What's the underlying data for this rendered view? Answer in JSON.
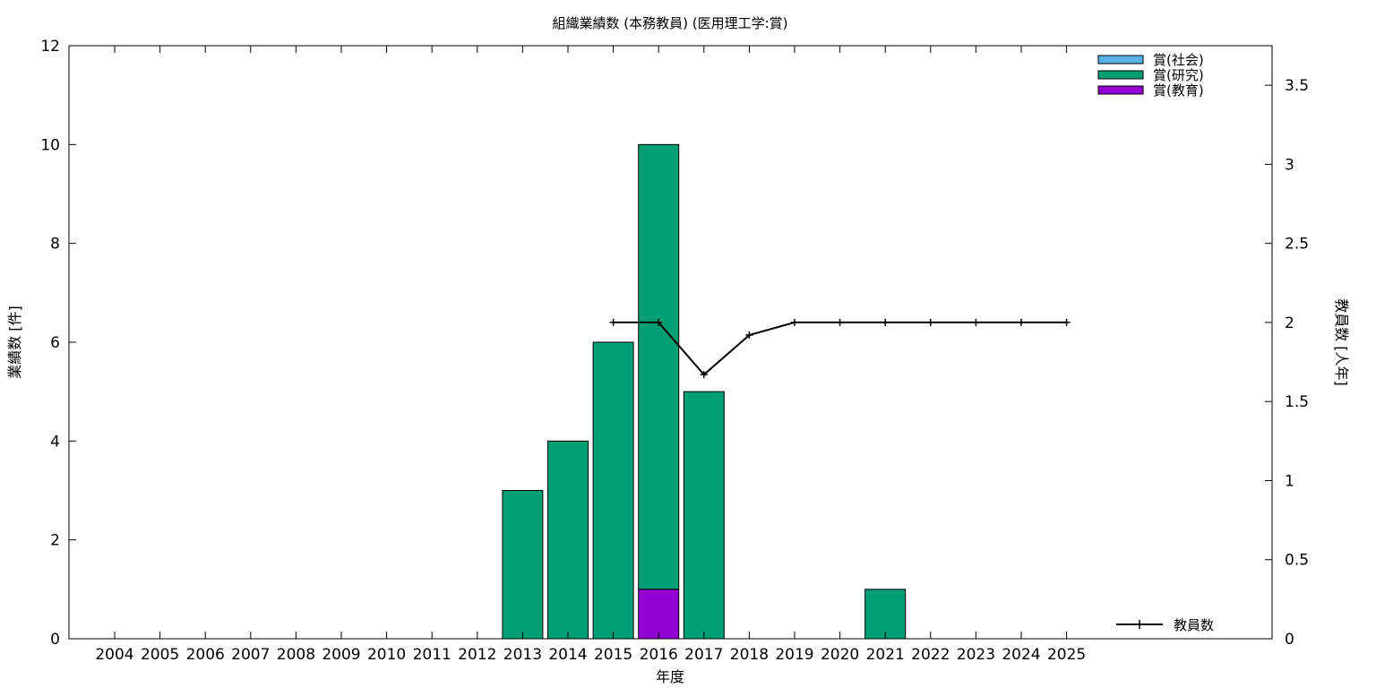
{
  "chart_data": {
    "type": "bar",
    "title": "組織業績数 (本務教員) (医用理工学:賞)",
    "xlabel": "年度",
    "ylabel": "業績数 [件]",
    "y2label": "教員数 [人年]",
    "categories": [
      "2004",
      "2005",
      "2006",
      "2007",
      "2008",
      "2009",
      "2010",
      "2011",
      "2012",
      "2013",
      "2014",
      "2015",
      "2016",
      "2017",
      "2018",
      "2019",
      "2020",
      "2021",
      "2022",
      "2023",
      "2024",
      "2025"
    ],
    "ylim": [
      0,
      12
    ],
    "y2lim": [
      0,
      3.75
    ],
    "yticks": [
      "0",
      "2",
      "4",
      "6",
      "8",
      "10",
      "12"
    ],
    "y2ticks": [
      "0",
      "0.5",
      "1",
      "1.5",
      "2",
      "2.5",
      "3",
      "3.5"
    ],
    "stacked": true,
    "series": [
      {
        "name": "賞(教育)",
        "color": "#9400d3",
        "values": [
          0,
          0,
          0,
          0,
          0,
          0,
          0,
          0,
          0,
          0,
          0,
          0,
          1,
          0,
          0,
          0,
          0,
          0,
          0,
          0,
          0,
          0
        ]
      },
      {
        "name": "賞(研究)",
        "color": "#009e73",
        "values": [
          0,
          0,
          0,
          0,
          0,
          0,
          0,
          0,
          0,
          3,
          4,
          6,
          9,
          5,
          0,
          0,
          0,
          1,
          0,
          0,
          0,
          0
        ]
      },
      {
        "name": "賞(社会)",
        "color": "#56b4e9",
        "values": [
          0,
          0,
          0,
          0,
          0,
          0,
          0,
          0,
          0,
          0,
          0,
          0,
          0,
          0,
          0,
          0,
          0,
          0,
          0,
          0,
          0,
          0
        ]
      }
    ],
    "line_series": {
      "name": "教員数",
      "color": "#000000",
      "axis": "right",
      "x": [
        "2015",
        "2016",
        "2017",
        "2018",
        "2019",
        "2020",
        "2021",
        "2022",
        "2023",
        "2024",
        "2025"
      ],
      "values": [
        2,
        2,
        1.67,
        1.92,
        2,
        2,
        2,
        2,
        2,
        2,
        2
      ]
    },
    "legend_position": "top-right",
    "grid": false
  }
}
